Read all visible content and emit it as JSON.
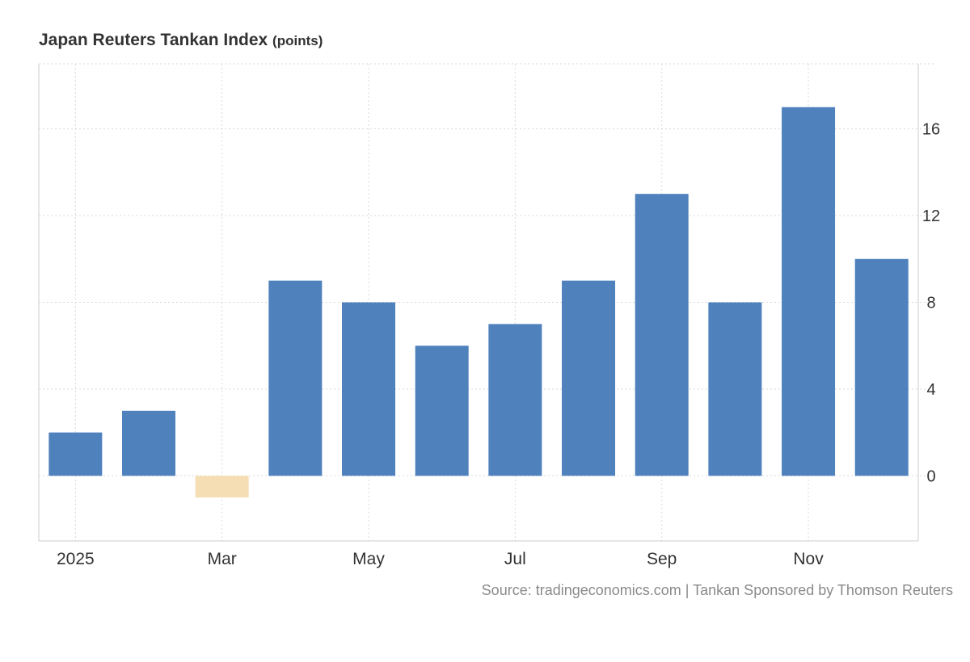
{
  "header": {
    "title": "Japan Reuters Tankan Index",
    "unit": "(points)"
  },
  "footer": {
    "source": "Source: tradingeconomics.com | Tankan Sponsored by Thomson Reuters"
  },
  "colors": {
    "positive": "#4f81bd",
    "negative": "#f5deb3",
    "grid": "#d9d9d9",
    "axis": "#cccccc",
    "text": "#333333"
  },
  "chart_data": {
    "type": "bar",
    "title": "Japan Reuters Tankan Index",
    "unit": "(points)",
    "categories": [
      "Jan 2025",
      "Feb 2025",
      "Mar 2025",
      "Apr 2025",
      "May 2025",
      "Jun 2025",
      "Jul 2025",
      "Aug 2025",
      "Sep 2025",
      "Oct 2025",
      "Nov 2025",
      "Dec 2025"
    ],
    "values": [
      2,
      3,
      -1,
      9,
      8,
      6,
      7,
      9,
      13,
      8,
      17,
      10
    ],
    "x_tick_labels": [
      {
        "label": "2025",
        "category": "Jan 2025"
      },
      {
        "label": "Mar",
        "category": "Mar 2025"
      },
      {
        "label": "May",
        "category": "May 2025"
      },
      {
        "label": "Jul",
        "category": "Jul 2025"
      },
      {
        "label": "Sep",
        "category": "Sep 2025"
      },
      {
        "label": "Nov",
        "category": "Nov 2025"
      }
    ],
    "y_ticks": [
      0,
      4,
      8,
      12,
      16
    ],
    "ylim": [
      -3,
      19
    ],
    "y_axis_side": "right",
    "grid": true,
    "legend": "none",
    "xlabel": "",
    "ylabel": ""
  }
}
